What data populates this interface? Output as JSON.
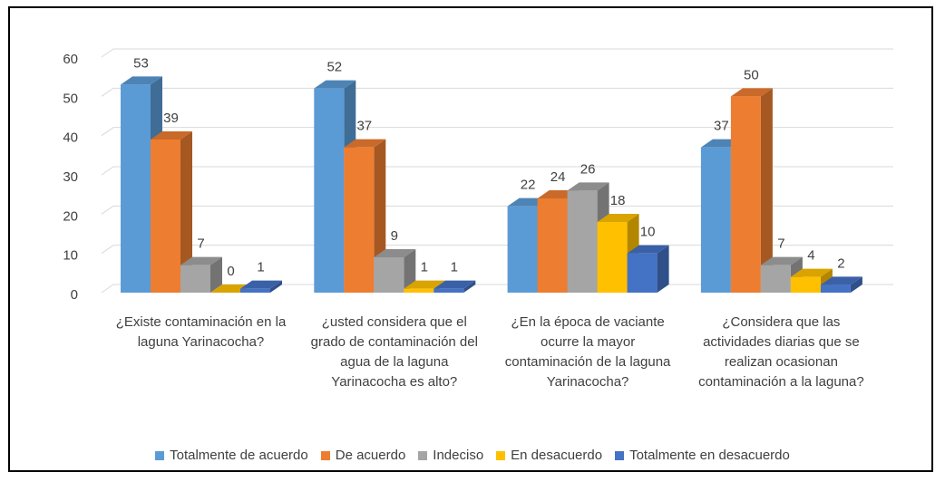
{
  "chart_data": {
    "type": "bar3d",
    "categories": [
      "¿Existe contaminación en la laguna Yarinacocha?",
      "¿usted considera que el grado de contaminación del agua de la laguna Yarinacocha es alto?",
      "¿En la época de vaciante ocurre la mayor contaminación de la laguna Yarinacocha?",
      "¿Considera que las actividades diarias que se realizan ocasionan contaminación a la laguna?"
    ],
    "series": [
      {
        "name": "Totalmente de acuerdo",
        "color": "#5b9bd5",
        "values": [
          53,
          52,
          22,
          37
        ]
      },
      {
        "name": "De acuerdo",
        "color": "#ed7d31",
        "values": [
          39,
          37,
          24,
          50
        ]
      },
      {
        "name": "Indeciso",
        "color": "#a5a5a5",
        "values": [
          7,
          9,
          26,
          7
        ]
      },
      {
        "name": "En desacuerdo",
        "color": "#ffc000",
        "values": [
          0,
          1,
          18,
          4
        ]
      },
      {
        "name": "Totalmente en desacuerdo",
        "color": "#4472c4",
        "values": [
          1,
          1,
          10,
          2
        ]
      }
    ],
    "ylim": [
      0,
      60
    ],
    "yticks": [
      0,
      10,
      20,
      30,
      40,
      50,
      60
    ],
    "grid": true,
    "legend": "bottom"
  }
}
